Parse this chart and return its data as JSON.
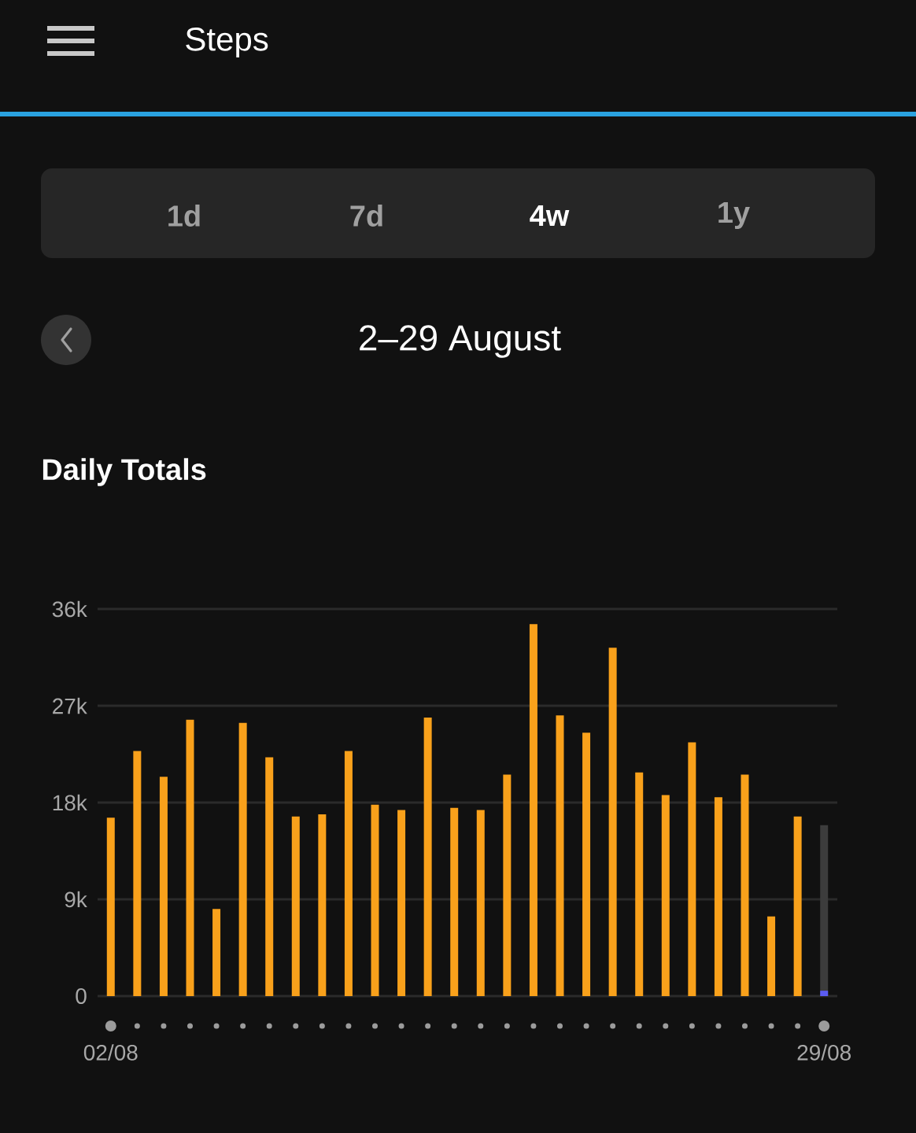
{
  "chart_data": {
    "type": "bar",
    "title": "Daily Totals",
    "subtitle": "2–29 August",
    "annotations": [
      "Steps",
      "1d",
      "7d",
      "4w",
      "1y"
    ],
    "categories": [
      "02/08",
      null,
      null,
      null,
      null,
      null,
      null,
      null,
      null,
      null,
      null,
      null,
      null,
      null,
      null,
      null,
      null,
      null,
      null,
      null,
      null,
      null,
      null,
      null,
      null,
      null,
      null,
      "29/08"
    ],
    "series": [
      {
        "color": "#f9a11b",
        "values": [
          16600,
          22800,
          20400,
          25700,
          8100,
          25400,
          22200,
          16700,
          16900,
          22800,
          17800,
          17300,
          25900,
          17500,
          17300,
          20600,
          34600,
          26100,
          24500,
          32400,
          20800,
          18700,
          23600,
          18500,
          20600,
          7400,
          16700,
          null
        ]
      },
      {
        "color": "#3c3c3c",
        "values": [
          null,
          null,
          null,
          null,
          null,
          null,
          null,
          null,
          null,
          null,
          null,
          null,
          null,
          null,
          null,
          null,
          null,
          null,
          null,
          null,
          null,
          null,
          null,
          null,
          null,
          null,
          null,
          15900
        ]
      },
      {
        "color": "#5b5cf2",
        "values": [
          null,
          null,
          null,
          null,
          null,
          null,
          null,
          null,
          null,
          null,
          null,
          null,
          null,
          null,
          null,
          null,
          null,
          null,
          null,
          null,
          null,
          null,
          null,
          null,
          null,
          null,
          null,
          500
        ]
      }
    ],
    "ylim": [
      0,
      36000
    ],
    "yticks": [
      0,
      {
        "value": 9000,
        "label": "9k"
      },
      {
        "value": 18000,
        "label": "18k"
      },
      {
        "value": 27000,
        "label": "27k"
      },
      {
        "value": 36000,
        "label": "36k"
      }
    ],
    "grid": "y"
  }
}
